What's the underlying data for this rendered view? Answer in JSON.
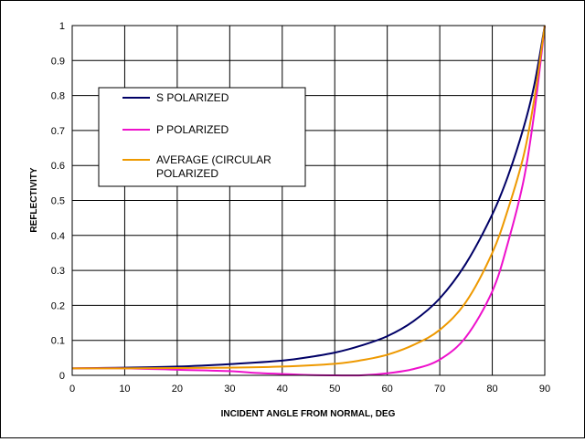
{
  "chart_data": {
    "type": "line",
    "title": "",
    "xlabel": "INCIDENT ANGLE FROM NORMAL, DEG",
    "ylabel": "REFLECTIVITY",
    "xlim": [
      0,
      90
    ],
    "ylim": [
      0,
      1
    ],
    "xticks": [
      0,
      10,
      20,
      30,
      40,
      50,
      60,
      70,
      80,
      90
    ],
    "yticks": [
      0,
      0.1,
      0.2,
      0.3,
      0.4,
      0.5,
      0.6,
      0.7,
      0.8,
      0.9,
      1
    ],
    "grid": true,
    "legend_position": "top-left",
    "series": [
      {
        "name": "S POLARIZED",
        "color": "#000066",
        "x": [
          0,
          10,
          20,
          30,
          40,
          45,
          50,
          55,
          60,
          65,
          70,
          75,
          80,
          83,
          86,
          88,
          90
        ],
        "y": [
          0.02,
          0.022,
          0.025,
          0.032,
          0.042,
          0.052,
          0.065,
          0.085,
          0.112,
          0.155,
          0.22,
          0.32,
          0.46,
          0.57,
          0.71,
          0.83,
          1.0
        ]
      },
      {
        "name": "P POLARIZED",
        "color": "#ee11cc",
        "x": [
          0,
          10,
          20,
          30,
          35,
          40,
          45,
          50,
          55,
          60,
          65,
          70,
          75,
          80,
          83,
          86,
          88,
          90
        ],
        "y": [
          0.02,
          0.02,
          0.016,
          0.012,
          0.007,
          0.004,
          0.001,
          0.0,
          0.0,
          0.006,
          0.018,
          0.045,
          0.11,
          0.24,
          0.38,
          0.56,
          0.75,
          1.0
        ]
      },
      {
        "name": "AVERAGE (CIRCULAR POLARIZED",
        "color": "#ee9900",
        "x": [
          0,
          10,
          20,
          30,
          40,
          50,
          55,
          60,
          65,
          70,
          75,
          80,
          83,
          86,
          88,
          90
        ],
        "y": [
          0.02,
          0.02,
          0.021,
          0.022,
          0.025,
          0.033,
          0.043,
          0.059,
          0.087,
          0.13,
          0.21,
          0.35,
          0.475,
          0.63,
          0.79,
          1.0
        ]
      }
    ]
  },
  "legend": {
    "s_label": "S POLARIZED",
    "p_label": "P POLARIZED",
    "avg_label_line1": "AVERAGE (CIRCULAR",
    "avg_label_line2": "POLARIZED"
  }
}
